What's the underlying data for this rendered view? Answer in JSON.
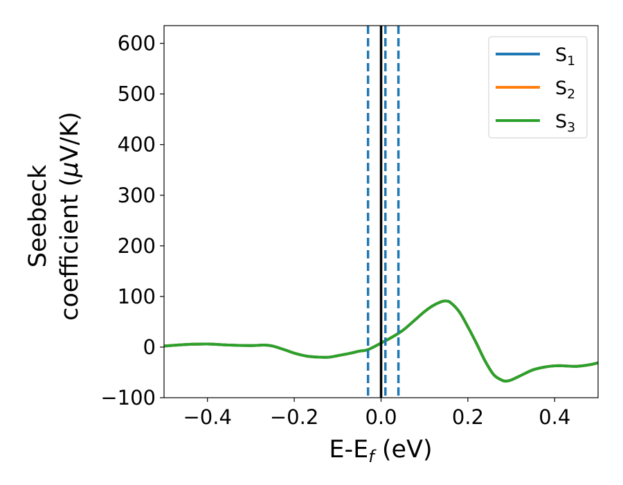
{
  "chart_data": {
    "type": "line",
    "xlabel": {
      "main": "E-E",
      "sub": "f",
      "tail": " (eV)"
    },
    "ylabel": {
      "line1": "Seebeck",
      "line2_pre": "coefficient  (",
      "mu": "μ",
      "line2_post": "V/K)"
    },
    "xlim": [
      -0.5,
      0.5
    ],
    "ylim": [
      -100,
      635
    ],
    "xticks": [
      -0.4,
      -0.2,
      0.0,
      0.2,
      0.4
    ],
    "xtick_labels": [
      "−0.4",
      "−0.2",
      "0.0",
      "0.2",
      "0.4"
    ],
    "yticks": [
      -100,
      0,
      100,
      200,
      300,
      400,
      500,
      600
    ],
    "ytick_labels": [
      "−100",
      "0",
      "100",
      "200",
      "300",
      "400",
      "500",
      "600"
    ],
    "grid": false,
    "legend_position": "top-right",
    "series": [
      {
        "name": "S",
        "subscript": "1",
        "color": "#1f77b4",
        "x": [
          -0.5,
          -0.45,
          -0.4,
          -0.35,
          -0.3,
          -0.27,
          -0.25,
          -0.22,
          -0.2,
          -0.17,
          -0.14,
          -0.12,
          -0.1,
          -0.07,
          -0.05,
          -0.03,
          0.0,
          0.02,
          0.05,
          0.08,
          0.1,
          0.12,
          0.14,
          0.15,
          0.16,
          0.18,
          0.2,
          0.22,
          0.24,
          0.26,
          0.28,
          0.29,
          0.3,
          0.32,
          0.35,
          0.38,
          0.4,
          0.42,
          0.45,
          0.48,
          0.5
        ],
        "y": [
          2,
          5,
          6,
          4,
          3,
          4,
          2,
          -6,
          -12,
          -18,
          -20,
          -20,
          -17,
          -12,
          -8,
          -5,
          8,
          17,
          33,
          55,
          70,
          82,
          90,
          91,
          88,
          70,
          40,
          7,
          -28,
          -55,
          -66,
          -67,
          -65,
          -57,
          -45,
          -39,
          -37,
          -37,
          -38,
          -35,
          -31
        ]
      },
      {
        "name": "S",
        "subscript": "2",
        "color": "#ff7f0e",
        "x": [
          -0.5,
          -0.45,
          -0.4,
          -0.35,
          -0.3,
          -0.27,
          -0.25,
          -0.22,
          -0.2,
          -0.17,
          -0.14,
          -0.12,
          -0.1,
          -0.07,
          -0.05,
          -0.03,
          0.0,
          0.02,
          0.05,
          0.08,
          0.1,
          0.12,
          0.14,
          0.15,
          0.16,
          0.18,
          0.2,
          0.22,
          0.24,
          0.26,
          0.28,
          0.29,
          0.3,
          0.32,
          0.35,
          0.38,
          0.4,
          0.42,
          0.45,
          0.48,
          0.5
        ],
        "y": [
          2,
          5,
          6,
          4,
          3,
          4,
          2,
          -6,
          -12,
          -18,
          -20,
          -20,
          -17,
          -12,
          -8,
          -5,
          8,
          17,
          33,
          55,
          70,
          82,
          90,
          91,
          88,
          70,
          40,
          7,
          -28,
          -55,
          -66,
          -67,
          -65,
          -57,
          -45,
          -39,
          -37,
          -37,
          -38,
          -35,
          -31
        ]
      },
      {
        "name": "S",
        "subscript": "3",
        "color": "#2ca02c",
        "x": [
          -0.5,
          -0.45,
          -0.4,
          -0.35,
          -0.3,
          -0.27,
          -0.25,
          -0.22,
          -0.2,
          -0.17,
          -0.14,
          -0.12,
          -0.1,
          -0.07,
          -0.05,
          -0.03,
          0.0,
          0.02,
          0.05,
          0.08,
          0.1,
          0.12,
          0.14,
          0.15,
          0.16,
          0.18,
          0.2,
          0.22,
          0.24,
          0.26,
          0.28,
          0.29,
          0.3,
          0.32,
          0.35,
          0.38,
          0.4,
          0.42,
          0.45,
          0.48,
          0.5
        ],
        "y": [
          2,
          5,
          6,
          4,
          3,
          4,
          2,
          -6,
          -12,
          -18,
          -20,
          -20,
          -17,
          -12,
          -8,
          -5,
          8,
          17,
          33,
          55,
          70,
          82,
          90,
          91,
          88,
          70,
          40,
          7,
          -28,
          -55,
          -66,
          -67,
          -65,
          -57,
          -45,
          -39,
          -37,
          -37,
          -38,
          -35,
          -31
        ]
      }
    ],
    "vertical_lines": [
      {
        "x": 0.0,
        "style": "solid",
        "color": "#000000"
      },
      {
        "x": -0.03,
        "style": "dashed",
        "color": "#1f77b4"
      },
      {
        "x": 0.01,
        "style": "dashed",
        "color": "#1f77b4"
      },
      {
        "x": 0.04,
        "style": "dashed",
        "color": "#1f77b4"
      }
    ]
  }
}
